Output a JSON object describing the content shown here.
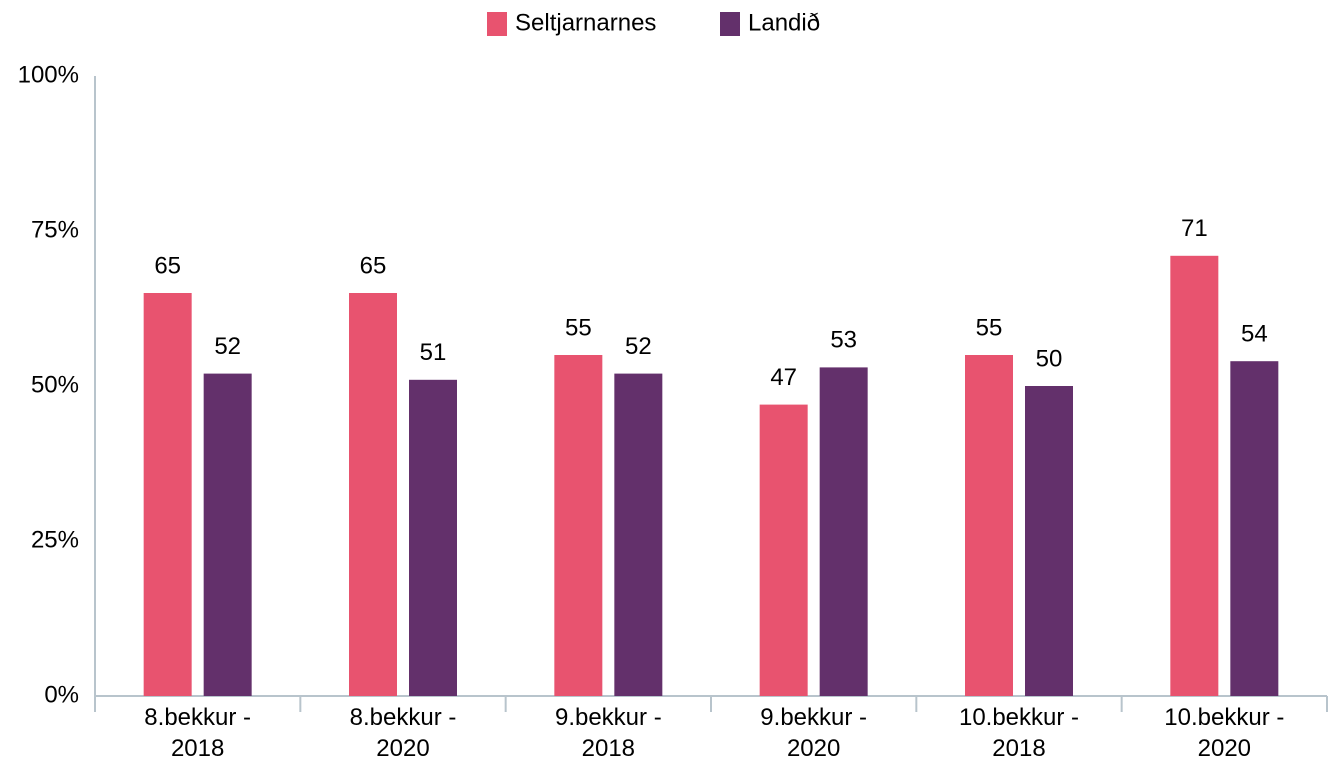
{
  "chart_data": {
    "type": "bar",
    "categories": [
      "8.bekkur - 2018",
      "8.bekkur - 2020",
      "9.bekkur - 2018",
      "9.bekkur - 2020",
      "10.bekkur - 2018",
      "10.bekkur - 2020"
    ],
    "series": [
      {
        "name": "Seltjarnarnes",
        "color": "#e8536f",
        "values": [
          65,
          65,
          55,
          47,
          55,
          71
        ]
      },
      {
        "name": "Landið",
        "color": "#63306b",
        "values": [
          52,
          51,
          52,
          53,
          50,
          54
        ]
      }
    ],
    "ylim": [
      0,
      100
    ],
    "yticks": [
      {
        "value": 0,
        "label": "0%"
      },
      {
        "value": 25,
        "label": "25%"
      },
      {
        "value": 50,
        "label": "50%"
      },
      {
        "value": 75,
        "label": "75%"
      },
      {
        "value": 100,
        "label": "100%"
      }
    ],
    "grid": false,
    "legend": "top"
  }
}
